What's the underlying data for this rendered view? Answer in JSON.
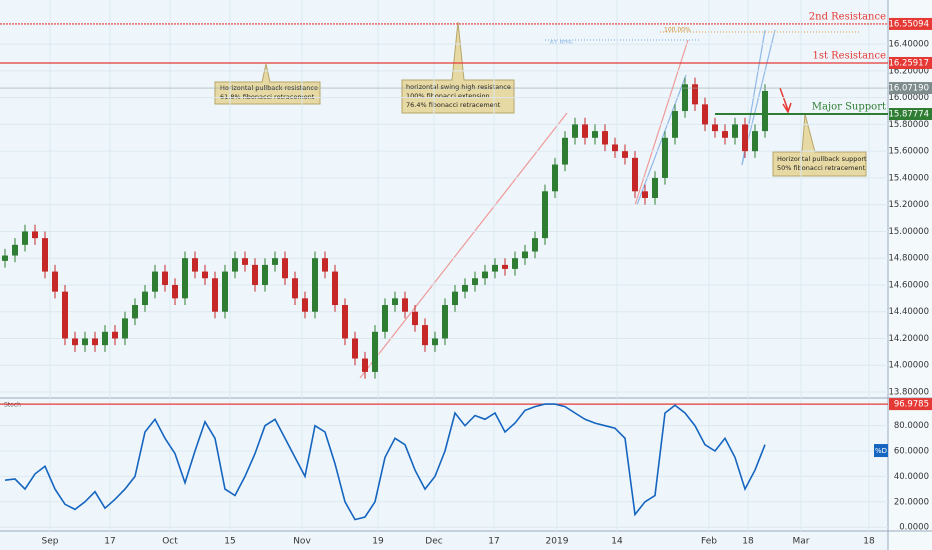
{
  "chart_data": {
    "type": "candlestick",
    "open": [
      14.78,
      14.82,
      14.9,
      15.0,
      14.95,
      14.7,
      14.55,
      14.2,
      14.15,
      14.2,
      14.15,
      14.25,
      14.2,
      14.35,
      14.45,
      14.55,
      14.7,
      14.6,
      14.5,
      14.8,
      14.7,
      14.65,
      14.4,
      14.7,
      14.8,
      14.75,
      14.6,
      14.75,
      14.8,
      14.65,
      14.5,
      14.4,
      14.8,
      14.7,
      14.45,
      14.2,
      14.05,
      13.95,
      14.25,
      14.45,
      14.5,
      14.4,
      14.3,
      14.15,
      14.2,
      14.45,
      14.55,
      14.6,
      14.65,
      14.7,
      14.75,
      14.72,
      14.8,
      14.85,
      14.95,
      15.3,
      15.5,
      15.7,
      15.8,
      15.7,
      15.75,
      15.65,
      15.6,
      15.55,
      15.3,
      15.25,
      15.4,
      15.7,
      15.9,
      16.1,
      15.95,
      15.8,
      15.75,
      15.7,
      15.8,
      15.6,
      15.75
    ],
    "high": [
      14.87,
      14.95,
      15.05,
      15.05,
      15.0,
      14.75,
      14.6,
      14.25,
      14.25,
      14.25,
      14.3,
      14.3,
      14.4,
      14.5,
      14.6,
      14.75,
      14.75,
      14.65,
      14.85,
      14.85,
      14.75,
      14.7,
      14.75,
      14.85,
      14.85,
      14.8,
      14.8,
      14.85,
      14.85,
      14.7,
      14.55,
      14.85,
      14.85,
      14.75,
      14.5,
      14.25,
      14.1,
      14.3,
      14.5,
      14.55,
      14.55,
      14.45,
      14.35,
      14.25,
      14.5,
      14.6,
      14.65,
      14.7,
      14.75,
      14.8,
      14.8,
      14.85,
      14.9,
      15.0,
      15.35,
      15.55,
      15.75,
      15.85,
      15.85,
      15.8,
      15.8,
      15.7,
      15.65,
      15.6,
      15.35,
      15.45,
      15.75,
      15.95,
      16.15,
      16.15,
      16.0,
      15.85,
      15.8,
      15.85,
      15.85,
      15.8,
      16.1
    ],
    "low": [
      14.73,
      14.77,
      14.85,
      14.9,
      14.65,
      14.5,
      14.15,
      14.1,
      14.1,
      14.1,
      14.1,
      14.15,
      14.15,
      14.3,
      14.4,
      14.5,
      14.55,
      14.45,
      14.45,
      14.65,
      14.6,
      14.35,
      14.35,
      14.65,
      14.7,
      14.55,
      14.55,
      14.7,
      14.6,
      14.45,
      14.35,
      14.35,
      14.65,
      14.4,
      14.15,
      14.0,
      13.9,
      13.9,
      14.2,
      14.4,
      14.35,
      14.25,
      14.1,
      14.1,
      14.15,
      14.4,
      14.5,
      14.55,
      14.6,
      14.65,
      14.67,
      14.67,
      14.75,
      14.8,
      14.9,
      15.25,
      15.45,
      15.65,
      15.65,
      15.65,
      15.6,
      15.55,
      15.5,
      15.25,
      15.2,
      15.2,
      15.35,
      15.65,
      15.85,
      15.9,
      15.75,
      15.7,
      15.65,
      15.65,
      15.55,
      15.55,
      15.7
    ],
    "close": [
      14.82,
      14.9,
      15.0,
      14.95,
      14.7,
      14.55,
      14.2,
      14.15,
      14.2,
      14.15,
      14.25,
      14.2,
      14.35,
      14.45,
      14.55,
      14.7,
      14.6,
      14.5,
      14.8,
      14.7,
      14.65,
      14.4,
      14.7,
      14.8,
      14.75,
      14.6,
      14.75,
      14.8,
      14.65,
      14.5,
      14.4,
      14.8,
      14.7,
      14.45,
      14.2,
      14.05,
      13.95,
      14.25,
      14.45,
      14.5,
      14.4,
      14.3,
      14.15,
      14.2,
      14.45,
      14.55,
      14.6,
      14.65,
      14.7,
      14.75,
      14.72,
      14.8,
      14.85,
      14.95,
      15.3,
      15.5,
      15.7,
      15.8,
      15.7,
      15.75,
      15.65,
      15.6,
      15.55,
      15.3,
      15.25,
      15.4,
      15.7,
      15.9,
      16.1,
      15.95,
      15.8,
      15.75,
      15.7,
      15.8,
      15.6,
      15.75,
      16.05
    ],
    "up_color": "#2e7d32",
    "down_color": "#c62828",
    "xlim": [
      -0.5,
      88.3
    ],
    "xticks": [
      {
        "value": 4.5,
        "label": "Sep"
      },
      {
        "value": 10.5,
        "label": "17"
      },
      {
        "value": 16.5,
        "label": "Oct"
      },
      {
        "value": 22.5,
        "label": "15"
      },
      {
        "value": 29.7,
        "label": "Nov"
      },
      {
        "value": 37.3,
        "label": "19"
      },
      {
        "value": 42.9,
        "label": "Dec"
      },
      {
        "value": 48.9,
        "label": "17"
      },
      {
        "value": 55.2,
        "label": "2019"
      },
      {
        "value": 61.2,
        "label": "14"
      },
      {
        "value": 70.4,
        "label": "Feb"
      },
      {
        "value": 74.3,
        "label": "18"
      },
      {
        "value": 79.6,
        "label": "Mar"
      },
      {
        "value": 86.4,
        "label": "18"
      }
    ],
    "ylim": [
      13.755,
      16.73
    ],
    "yticks": [
      {
        "value": 13.8,
        "label": "13.80000"
      },
      {
        "value": 14.0,
        "label": "14.00000"
      },
      {
        "value": 14.2,
        "label": "14.20000"
      },
      {
        "value": 14.4,
        "label": "14.40000"
      },
      {
        "value": 14.6,
        "label": "14.60000"
      },
      {
        "value": 14.8,
        "label": "14.80000"
      },
      {
        "value": 15.0,
        "label": "15.00000"
      },
      {
        "value": 15.2,
        "label": "15.20000"
      },
      {
        "value": 15.4,
        "label": "15.40000"
      },
      {
        "value": 15.6,
        "label": "15.60000"
      },
      {
        "value": 15.8,
        "label": "15.80000"
      },
      {
        "value": 16.0,
        "label": "16.00000"
      },
      {
        "value": 16.2,
        "label": "16.20000"
      },
      {
        "value": 16.4,
        "label": "16.40000"
      }
    ],
    "levels": [
      {
        "name": "2nd Resistance",
        "value": 16.55094,
        "color": "#e53935"
      },
      {
        "name": "1st Resistance",
        "value": 16.25917,
        "color": "#e53935"
      },
      {
        "name": "Major Support",
        "value": 15.87774,
        "color": "#2e7d32"
      }
    ],
    "last_price": {
      "value": 16.0719,
      "label": "16.07190"
    },
    "annotations": [
      {
        "lines": [
          "Horizontal pullback resistance",
          "61.8% fibonacci retracement"
        ]
      },
      {
        "lines": [
          "horizontal swing high resistance",
          "100% fibonacci extension",
          "76.4% fibonacci retracement"
        ]
      },
      {
        "lines": [
          "Horizontal pullback support",
          "50% fibonacci retracement"
        ]
      }
    ],
    "fib_labels": [
      "61.80%",
      "100.00%"
    ],
    "indicator": {
      "name": "Stoch",
      "series": [
        {
          "name": "%D",
          "color": "#1565c0",
          "values": [
            37,
            38,
            30,
            42,
            48,
            30,
            18,
            14,
            20,
            28,
            15,
            22,
            30,
            40,
            75,
            85,
            70,
            58,
            35,
            60,
            83,
            70,
            30,
            25,
            40,
            58,
            80,
            85,
            70,
            55,
            40,
            80,
            75,
            50,
            20,
            6,
            8,
            20,
            55,
            70,
            65,
            45,
            30,
            40,
            60,
            90,
            80,
            88,
            85,
            90,
            75,
            82,
            92,
            95,
            97,
            97,
            95,
            90,
            85,
            82,
            80,
            78,
            70,
            10,
            20,
            25,
            90,
            96,
            90,
            80,
            65,
            60,
            70,
            55,
            30,
            45,
            65
          ]
        }
      ],
      "ylim": [
        -3,
        101
      ],
      "yticks": [
        {
          "value": 0,
          "label": "0.0000"
        },
        {
          "value": 20,
          "label": "20.0000"
        },
        {
          "value": 40,
          "label": "40.0000"
        },
        {
          "value": 60,
          "label": "60.0000"
        },
        {
          "value": 80,
          "label": "80.0000"
        }
      ],
      "level": 96.9785
    }
  }
}
